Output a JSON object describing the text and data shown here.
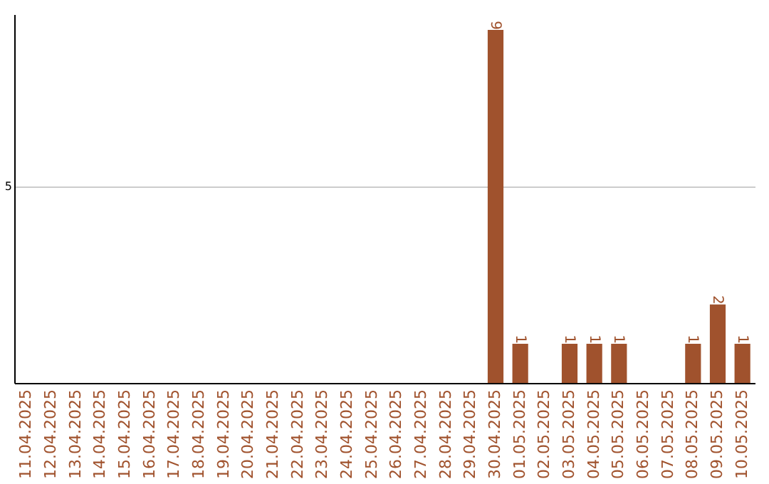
{
  "chart_data": {
    "type": "bar",
    "categories": [
      "11.04.2025",
      "12.04.2025",
      "13.04.2025",
      "14.04.2025",
      "15.04.2025",
      "16.04.2025",
      "17.04.2025",
      "18.04.2025",
      "19.04.2025",
      "20.04.2025",
      "21.04.2025",
      "22.04.2025",
      "23.04.2025",
      "24.04.2025",
      "25.04.2025",
      "26.04.2025",
      "27.04.2025",
      "28.04.2025",
      "29.04.2025",
      "30.04.2025",
      "01.05.2025",
      "02.05.2025",
      "03.05.2025",
      "04.05.2025",
      "05.05.2025",
      "06.05.2025",
      "07.05.2025",
      "08.05.2025",
      "09.05.2025",
      "10.05.2025"
    ],
    "values": [
      null,
      null,
      null,
      null,
      null,
      null,
      null,
      null,
      null,
      null,
      null,
      null,
      null,
      null,
      null,
      null,
      null,
      null,
      null,
      9,
      1,
      null,
      1,
      1,
      1,
      null,
      null,
      1,
      2,
      1
    ],
    "color": "#a0522d",
    "ylim": [
      0,
      9.4
    ],
    "yticks": [
      5
    ],
    "grid": "y",
    "data_labels": true
  }
}
